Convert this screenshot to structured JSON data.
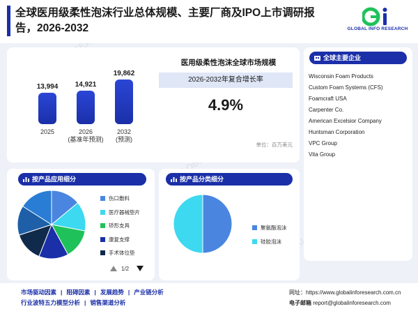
{
  "header": {
    "title": "全球医用级柔性泡沫行业总体规模、主要厂商及IPO上市调研报告，2026-2032",
    "logo_text": "GLOBAL INFO RESEARCH"
  },
  "market": {
    "title": "医用级柔性泡沫全球市场规模",
    "cagr_label": "2026-2032年复合增长率",
    "cagr_value": "4.9%",
    "unit": "单位：百万美元"
  },
  "chart_data": {
    "type": "bar",
    "categories": [
      "2025",
      "2026",
      "2032"
    ],
    "category_notes": [
      "",
      "(基准年预测)",
      "(预测)"
    ],
    "value_labels": [
      "13,994",
      "14,921",
      "19,862"
    ],
    "values": [
      13994,
      14921,
      19862
    ],
    "ylim": [
      0,
      20000
    ]
  },
  "companies": {
    "title": "全球主要企业",
    "items": [
      "Wisconsin Foam Products",
      "Custom Foam Systems (CFS)",
      "Foamcraft USA",
      "Carpenter Co.",
      "American Excelsior Company",
      "Huntsman Corporation",
      "VPC Group",
      "Vita Group"
    ]
  },
  "application": {
    "title": "按产品应用细分",
    "legend": [
      "伤口敷料",
      "医疗器械垫片",
      "矫形支具",
      "康复支撑",
      "手术体位垫"
    ],
    "colors": [
      "#4a86e0",
      "#3dd9f0",
      "#1fc25a",
      "#1a2fa8",
      "#0f2a4a"
    ],
    "page": "1/2"
  },
  "product": {
    "title": "按产品分类细分",
    "legend": [
      "聚氨酯泡沫",
      "硅胶泡沫"
    ],
    "colors": [
      "#4a86e0",
      "#3dd9f0"
    ]
  },
  "footer": {
    "links_row1": [
      "市场驱动因素",
      "阻碍因素",
      "发展趋势",
      "产业链分析"
    ],
    "links_row2": [
      "行业波特五力模型分析",
      "销售渠道分析"
    ],
    "website_label": "网址：",
    "website": "https://www.globalinforesearch.com.cn",
    "email_label": "电子邮箱",
    "email": "report@globalinforesearch.com"
  }
}
